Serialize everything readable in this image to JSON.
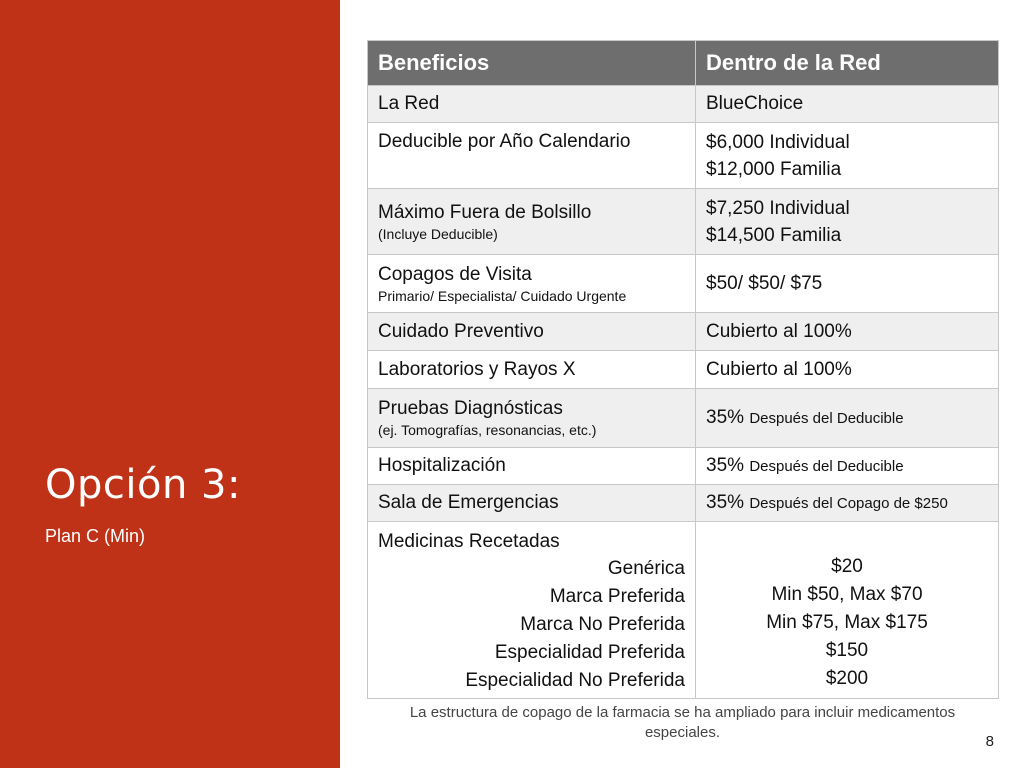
{
  "slide": {
    "title": "Opción 3:",
    "subtitle": "Plan C (Min)",
    "footnote": "La estructura de copago de la farmacia se ha ampliado para incluir medicamentos especiales.",
    "page_number": "8",
    "accent_color": "#bf3218",
    "header_color": "#6e6e6e"
  },
  "table": {
    "headers": [
      "Beneficios",
      "Dentro de la Red"
    ],
    "network": {
      "label": "La Red",
      "value": "BlueChoice"
    },
    "deductible": {
      "label": "Deducible por Año Calendario",
      "value_1": "$6,000 Individual",
      "value_2": "$12,000 Familia"
    },
    "oop_max": {
      "label": "Máximo Fuera de Bolsillo",
      "note": "(Incluye Deducible)",
      "value_1": "$7,250 Individual",
      "value_2": "$14,500 Familia"
    },
    "copays": {
      "label": "Copagos de Visita",
      "note": "Primario/ Especialista/ Cuidado Urgente",
      "value": "$50/ $50/ $75"
    },
    "preventive": {
      "label": "Cuidado Preventivo",
      "value": "Cubierto al 100%"
    },
    "labs": {
      "label": "Laboratorios y Rayos X",
      "value": "Cubierto al 100%"
    },
    "diagnostics": {
      "label": "Pruebas Diagnósticas",
      "note": "(ej. Tomografías, resonancias, etc.)",
      "value_main": "35%",
      "value_note": "Después del Deducible"
    },
    "hospital": {
      "label": "Hospitalización",
      "value_main": "35%",
      "value_note": "Después del Deducible"
    },
    "er": {
      "label": "Sala de Emergencias",
      "value_main": "35%",
      "value_note": "Después del Copago de $250"
    },
    "medications": {
      "label": "Medicinas Recetadas",
      "tiers": [
        "Genérica",
        "Marca Preferida",
        "Marca No Preferida",
        "Especialidad Preferida",
        "Especialidad No Preferida"
      ],
      "costs": [
        "$20",
        "Min $50, Max $70",
        "Min $75, Max $175",
        "$150",
        "$200"
      ]
    }
  }
}
